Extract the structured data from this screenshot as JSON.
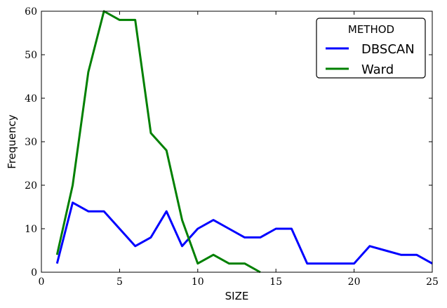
{
  "chart_data": {
    "type": "line",
    "title": "",
    "xlabel": "SIZE",
    "ylabel": "Frequency",
    "xlim": [
      0,
      25
    ],
    "ylim": [
      0,
      60
    ],
    "xticks": [
      0,
      5,
      10,
      15,
      20,
      25
    ],
    "yticks": [
      0,
      10,
      20,
      30,
      40,
      50,
      60
    ],
    "grid": false,
    "legend": {
      "title": "METHOD",
      "placement": "top-right"
    },
    "series": [
      {
        "name": "DBSCAN",
        "color": "#0000ff",
        "x": [
          1,
          2,
          3,
          4,
          5,
          6,
          7,
          8,
          9,
          10,
          11,
          12,
          13,
          14,
          15,
          16,
          17,
          18,
          19,
          20,
          21,
          22,
          23,
          24,
          25
        ],
        "y": [
          2,
          16,
          14,
          14,
          10,
          6,
          8,
          14,
          6,
          10,
          12,
          10,
          8,
          8,
          10,
          10,
          2,
          2,
          2,
          2,
          6,
          5,
          4,
          4,
          2
        ]
      },
      {
        "name": "Ward",
        "color": "#008000",
        "x": [
          1,
          2,
          3,
          4,
          5,
          6,
          7,
          8,
          9,
          10,
          11,
          12,
          13,
          14
        ],
        "y": [
          4,
          20,
          46,
          60,
          58,
          58,
          32,
          28,
          12,
          2,
          4,
          2,
          2,
          0
        ]
      }
    ]
  }
}
